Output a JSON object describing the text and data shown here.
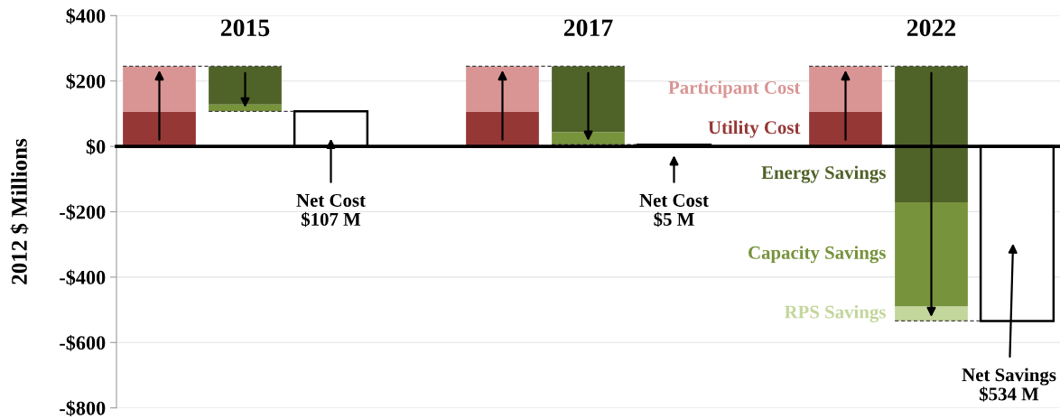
{
  "chart_data": {
    "type": "bar",
    "ylabel": "2012 $ Millions",
    "categories": [
      null,
      "2015",
      null,
      null,
      null,
      "2017",
      null,
      null,
      null,
      "2022",
      null
    ],
    "ylim": [
      -800,
      400
    ],
    "yticks": [
      {
        "value": 400,
        "label": "$400"
      },
      {
        "value": 200,
        "label": "$200"
      },
      {
        "value": 0,
        "label": "$0"
      },
      {
        "value": -200,
        "label": "-$200"
      },
      {
        "value": -400,
        "label": "-$400"
      },
      {
        "value": -600,
        "label": "-$600"
      },
      {
        "value": -800,
        "label": "-$800"
      }
    ],
    "grid": "y",
    "series": [
      {
        "name": "Utility Cost",
        "color": "#953735",
        "values": [
          105,
          null,
          null,
          null,
          105,
          null,
          null,
          null,
          105,
          null,
          null
        ],
        "base": [
          0,
          null,
          null,
          null,
          0,
          null,
          null,
          null,
          0,
          null,
          null
        ]
      },
      {
        "name": "Participant Cost",
        "color": "#d99594",
        "values": [
          140,
          null,
          null,
          null,
          140,
          null,
          null,
          null,
          140,
          null,
          null
        ],
        "base": [
          105,
          null,
          null,
          null,
          105,
          null,
          null,
          null,
          105,
          null,
          null
        ]
      },
      {
        "name": "Energy Savings",
        "color": "#4f6228",
        "values": [
          null,
          -117,
          null,
          null,
          null,
          -202,
          null,
          null,
          null,
          -416,
          null
        ],
        "base": [
          null,
          245,
          null,
          null,
          null,
          245,
          null,
          null,
          null,
          245,
          null
        ]
      },
      {
        "name": "Capacity Savings",
        "color": "#77933c",
        "values": [
          null,
          -21,
          null,
          null,
          null,
          -38,
          null,
          null,
          null,
          -319,
          null
        ],
        "base": [
          null,
          128,
          null,
          null,
          null,
          43,
          null,
          null,
          null,
          -171,
          null
        ]
      },
      {
        "name": "RPS Savings",
        "color": "#c3d69b",
        "values": [
          null,
          null,
          null,
          null,
          null,
          null,
          null,
          null,
          null,
          -44,
          null
        ],
        "base": [
          null,
          null,
          null,
          null,
          null,
          null,
          null,
          null,
          null,
          -490,
          null
        ]
      },
      {
        "color": "#ffffff",
        "values": [
          null,
          null,
          107,
          null,
          null,
          null,
          5,
          null,
          null,
          null,
          -534
        ],
        "value_labels": [
          null,
          null,
          "Net Cost\n$107 M",
          null,
          null,
          null,
          "Net Cost\n$5 M",
          null,
          null,
          null,
          "Net Savings\n$534 M"
        ]
      }
    ]
  }
}
